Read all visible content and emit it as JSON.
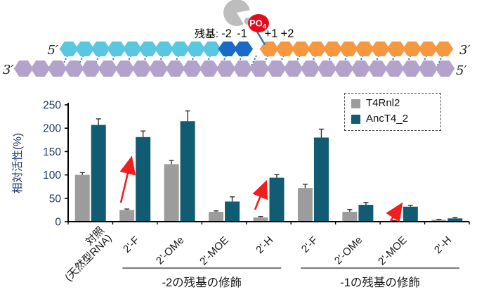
{
  "diagram": {
    "residue_label": "残基:",
    "positions": [
      "-2",
      "-1",
      "+1",
      "+2"
    ],
    "po4_main": "PO",
    "po4_sub": "4",
    "ends": {
      "top_left": "5′",
      "top_right": "3′",
      "bottom_left": "3′",
      "bottom_right": "5′"
    },
    "top_segments": [
      {
        "name": "acceptor-strand",
        "color": "#59C7E0",
        "count": 10
      },
      {
        "name": "junction-residues",
        "color": "#1A6BC6",
        "count": 2,
        "nick_after": true
      },
      {
        "name": "donor-strand",
        "color": "#F7973F",
        "count": 12
      }
    ],
    "bottom_strand": {
      "name": "template-strand",
      "color": "#B3A3CB",
      "count": 26
    },
    "colors": {
      "enzyme": "#BDBDBD",
      "po4": "#E00E1C",
      "bond": "#2E75B6"
    }
  },
  "chart_data": {
    "type": "bar",
    "title": "",
    "xlabel": "",
    "ylabel": "相対活性(%)",
    "ylim": [
      0,
      250
    ],
    "yticks": [
      0,
      50,
      100,
      150,
      200,
      250
    ],
    "grid": false,
    "legend_position": "top-right",
    "legend_border": "dashed",
    "categories": [
      "対照\n(天然型RNA)",
      "2'-F",
      "2'-OMe",
      "2'-MOE",
      "2'-H",
      "2'-F",
      "2'-OMe",
      "2'-MOE",
      "2'-H"
    ],
    "series": [
      {
        "name": "T4Rnl2",
        "color": "#9C9C9C",
        "values": [
          100,
          25,
          123,
          21,
          9,
          72,
          21,
          1,
          4
        ],
        "errors": [
          5,
          2,
          8,
          2,
          2,
          8,
          5,
          1,
          1
        ]
      },
      {
        "name": "AncT4_2",
        "color": "#115B73",
        "values": [
          207,
          181,
          215,
          43,
          94,
          180,
          36,
          32,
          7
        ],
        "errors": [
          13,
          13,
          22,
          10,
          7,
          18,
          5,
          3,
          1.5
        ]
      }
    ],
    "group_annotations": [
      {
        "label": "-2の残基の修飾",
        "from": 1,
        "to": 4
      },
      {
        "label": "-1の残基の修飾",
        "from": 5,
        "to": 8
      }
    ],
    "arrows": [
      {
        "from": [
          172,
          288
        ],
        "to": [
          186,
          229
        ]
      },
      {
        "from": [
          363,
          298
        ],
        "to": [
          377,
          263
        ]
      },
      {
        "from": [
          556,
          314
        ],
        "to": [
          569,
          294
        ]
      }
    ],
    "arrow_color": "#F01E1E",
    "axis_color": "#000000",
    "tick_label_color": "#1F3864",
    "category_label_color": "#1A1A1A"
  }
}
